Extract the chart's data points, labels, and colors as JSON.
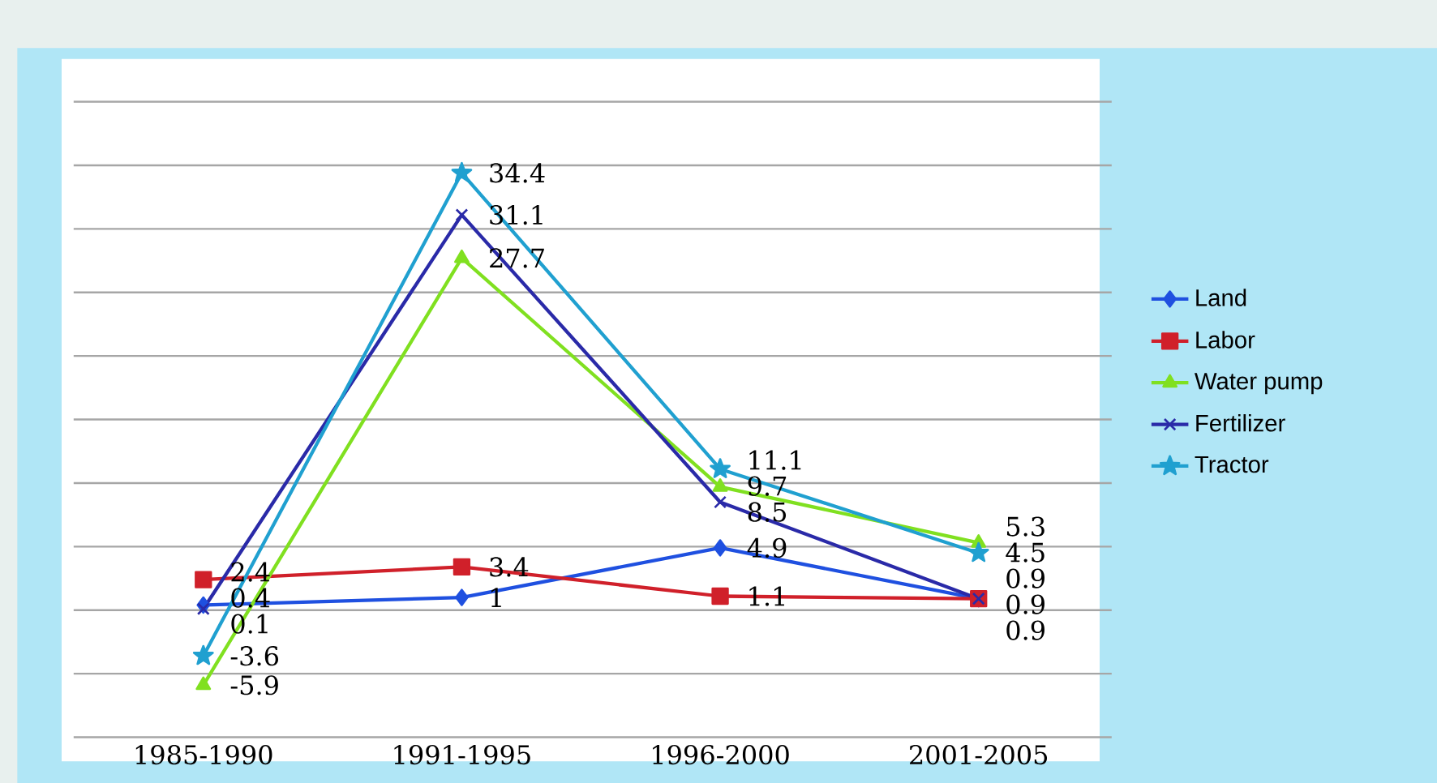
{
  "chart_data": {
    "type": "line",
    "categories": [
      "1985-1990",
      "1991-1995",
      "1996-2000",
      "2001-2005"
    ],
    "series": [
      {
        "name": "Land",
        "color": "#1f50e0",
        "marker": "diamond",
        "values": [
          0.4,
          1,
          4.9,
          0.9
        ]
      },
      {
        "name": "Labor",
        "color": "#d0202a",
        "marker": "square",
        "values": [
          2.4,
          3.4,
          1.1,
          0.9
        ]
      },
      {
        "name": "Water pump",
        "color": "#80e020",
        "marker": "triangle",
        "values": [
          -5.9,
          27.7,
          9.7,
          5.3
        ]
      },
      {
        "name": "Fertilizer",
        "color": "#2a2aa8",
        "marker": "cross",
        "values": [
          0.1,
          31.1,
          8.5,
          0.9
        ]
      },
      {
        "name": "Tractor",
        "color": "#20a0d0",
        "marker": "star",
        "values": [
          -3.6,
          34.4,
          11.1,
          4.5
        ]
      }
    ],
    "ylim": [
      -10,
      40
    ],
    "yticks": [
      {
        "value": -10,
        "label": null
      },
      {
        "value": -5,
        "label": null
      },
      {
        "value": 0,
        "label": null
      },
      {
        "value": 5,
        "label": null
      },
      {
        "value": 10,
        "label": null
      },
      {
        "value": 15,
        "label": null
      },
      {
        "value": 20,
        "label": null
      },
      {
        "value": 25,
        "label": null
      },
      {
        "value": 30,
        "label": null
      },
      {
        "value": 35,
        "label": null
      },
      {
        "value": 40,
        "label": null
      }
    ],
    "grid": "y",
    "tick_labels": "x",
    "legend": "right",
    "data_labels": true,
    "line_style": "solid"
  }
}
